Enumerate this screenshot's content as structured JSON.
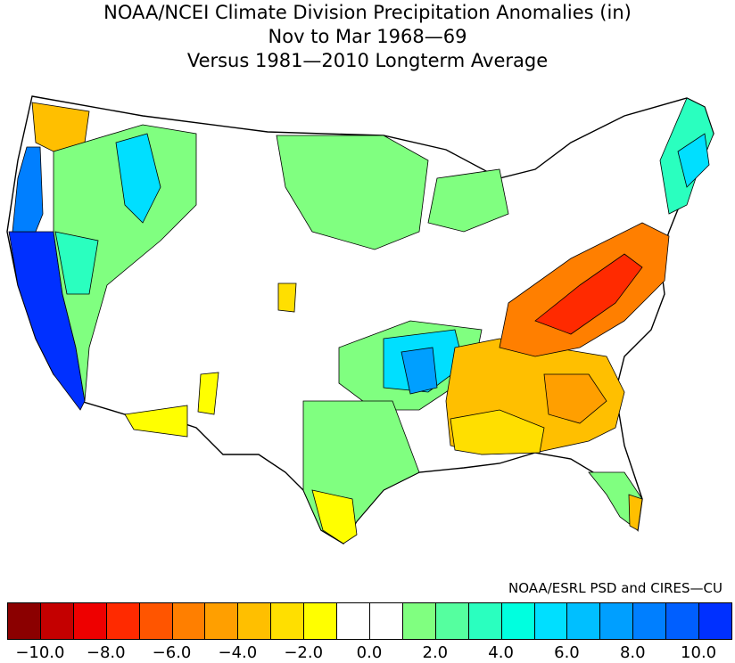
{
  "title": {
    "line1": "NOAA/NCEI Climate Division Precipitation Anomalies (in)",
    "line2": "Nov to Mar 1968—69",
    "line3": "Versus 1981—2010 Longterm Average"
  },
  "credit": "NOAA/ESRL PSD and CIRES—CU",
  "colorbar": {
    "colors": [
      "#8b0000",
      "#c40000",
      "#ee0000",
      "#ff2a00",
      "#ff5500",
      "#ff7f00",
      "#ff9f00",
      "#ffbf00",
      "#ffdf00",
      "#ffff00",
      "#ffffff",
      "#ffffff",
      "#80ff80",
      "#55ff9f",
      "#2affbf",
      "#00ffdf",
      "#00dfff",
      "#00bfff",
      "#009fff",
      "#007fff",
      "#005fff",
      "#0030ff"
    ],
    "tick_labels": [
      "−10.0",
      "−8.0",
      "−6.0",
      "−4.0",
      "−2.0",
      "0.0",
      "2.0",
      "4.0",
      "6.0",
      "8.0",
      "10.0"
    ]
  },
  "map": {
    "region": "Contiguous United States climate divisions",
    "palette_note": "blue = wetter than average, red/orange = drier than average"
  }
}
